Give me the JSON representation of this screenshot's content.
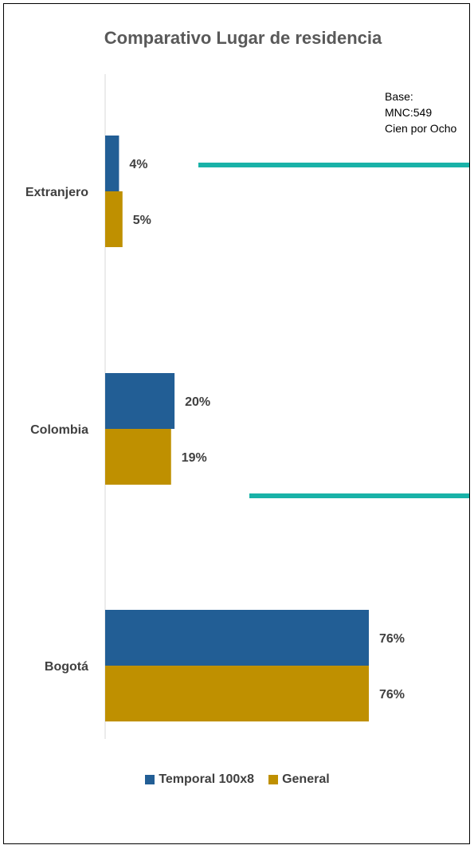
{
  "chart_data": {
    "type": "bar",
    "orientation": "horizontal",
    "title": "Comparativo Lugar de residencia",
    "categories": [
      "Extranjero",
      "Colombia",
      "Bogotá"
    ],
    "series": [
      {
        "name": "Temporal 100x8",
        "values": [
          4,
          20,
          76
        ],
        "labels": [
          "4%",
          "20%",
          "76%"
        ],
        "color": "#225e95"
      },
      {
        "name": "General",
        "values": [
          5,
          19,
          76
        ],
        "labels": [
          "5%",
          "19%",
          "76%"
        ],
        "color": "#bf9000"
      }
    ],
    "xlim": [
      0,
      100
    ],
    "legend": "bottom",
    "grid": false
  },
  "annotation": {
    "lines": [
      "Base:",
      "MNC:549",
      "Cien por Ocho"
    ]
  },
  "accent_line_color": "#19b2a8"
}
